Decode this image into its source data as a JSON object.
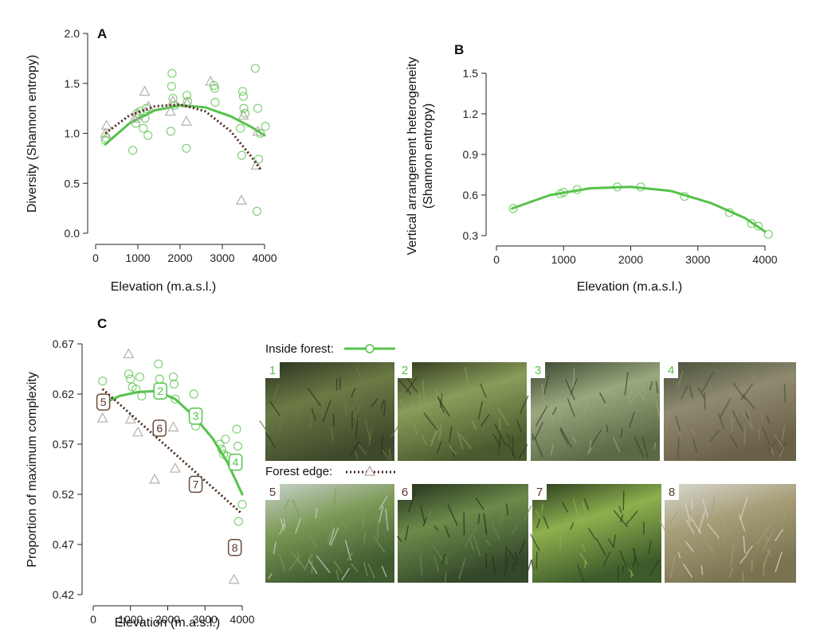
{
  "colors": {
    "inside": "#55c24a",
    "edge": "#4a2a1a",
    "triangle": "#b0a69f",
    "box_edge_text": "#5a3a2a",
    "axis": "#222222"
  },
  "chart_data": [
    {
      "panel_label": "A",
      "type": "scatter",
      "xlabel": "Elevation (m.a.s.l.)",
      "ylabel": "Diversity (Shannon entropy)",
      "xlim": [
        0,
        4000
      ],
      "ylim": [
        0,
        2.0
      ],
      "xticks": [
        "0",
        "1000",
        "2000",
        "3000",
        "4000"
      ],
      "yticks": [
        "0.0",
        "0.5",
        "1.0",
        "1.5",
        "2.0"
      ],
      "xtick_values": [
        0,
        1000,
        2000,
        3000,
        4000
      ],
      "ytick_values": [
        0,
        0.5,
        1.0,
        1.5,
        2.0
      ],
      "series": [
        {
          "group": "inside",
          "marker": "circle",
          "points": [
            [
              230,
              0.93
            ],
            [
              260,
              0.95
            ],
            [
              880,
              0.83
            ],
            [
              950,
              1.1
            ],
            [
              980,
              1.2
            ],
            [
              1050,
              1.22
            ],
            [
              1130,
              1.05
            ],
            [
              1170,
              1.15
            ],
            [
              1200,
              1.25
            ],
            [
              1240,
              0.98
            ],
            [
              1780,
              1.02
            ],
            [
              1800,
              1.47
            ],
            [
              1810,
              1.6
            ],
            [
              1830,
              1.35
            ],
            [
              1870,
              1.28
            ],
            [
              2150,
              0.85
            ],
            [
              2160,
              1.38
            ],
            [
              2180,
              1.32
            ],
            [
              2800,
              1.48
            ],
            [
              2820,
              1.45
            ],
            [
              2830,
              1.31
            ],
            [
              3430,
              1.05
            ],
            [
              3460,
              0.78
            ],
            [
              3480,
              1.42
            ],
            [
              3500,
              1.37
            ],
            [
              3510,
              1.25
            ],
            [
              3540,
              1.2
            ],
            [
              3780,
              1.65
            ],
            [
              3820,
              0.22
            ],
            [
              3840,
              1.25
            ],
            [
              3860,
              0.74
            ],
            [
              3900,
              1.0
            ],
            [
              4020,
              1.07
            ]
          ],
          "fit": [
            [
              230,
              0.89
            ],
            [
              800,
              1.1
            ],
            [
              1400,
              1.23
            ],
            [
              2000,
              1.28
            ],
            [
              2600,
              1.26
            ],
            [
              3200,
              1.17
            ],
            [
              3700,
              1.06
            ],
            [
              4000,
              0.98
            ]
          ]
        },
        {
          "group": "edge",
          "marker": "triangle",
          "points": [
            [
              230,
              1.0
            ],
            [
              260,
              1.08
            ],
            [
              920,
              1.15
            ],
            [
              1000,
              1.18
            ],
            [
              1160,
              1.42
            ],
            [
              1250,
              1.27
            ],
            [
              1770,
              1.22
            ],
            [
              1830,
              1.32
            ],
            [
              2150,
              1.12
            ],
            [
              2170,
              1.3
            ],
            [
              2720,
              1.52
            ],
            [
              3450,
              0.33
            ],
            [
              3500,
              1.18
            ],
            [
              3800,
              0.68
            ],
            [
              3840,
              1.02
            ]
          ],
          "fit": [
            [
              230,
              1.0
            ],
            [
              800,
              1.18
            ],
            [
              1400,
              1.27
            ],
            [
              2000,
              1.29
            ],
            [
              2600,
              1.22
            ],
            [
              3200,
              1.02
            ],
            [
              3700,
              0.76
            ],
            [
              3900,
              0.64
            ]
          ]
        }
      ]
    },
    {
      "panel_label": "B",
      "type": "scatter",
      "xlabel": "Elevation (m.a.s.l.)",
      "ylabel_line1": "Vertical arrangement heterogeneity",
      "ylabel_line2": "(Shannon entropy)",
      "xlim": [
        0,
        4000
      ],
      "ylim": [
        0.3,
        1.5
      ],
      "xticks": [
        "0",
        "1000",
        "2000",
        "3000",
        "4000"
      ],
      "yticks": [
        "0.3",
        "0.6",
        "0.9",
        "1.2",
        "1.5"
      ],
      "xtick_values": [
        0,
        1000,
        2000,
        3000,
        4000
      ],
      "ytick_values": [
        0.3,
        0.6,
        0.9,
        1.2,
        1.5
      ],
      "series": [
        {
          "group": "inside",
          "marker": "circle",
          "points": [
            [
              250,
              0.5
            ],
            [
              950,
              0.61
            ],
            [
              1000,
              0.62
            ],
            [
              1200,
              0.64
            ],
            [
              1800,
              0.66
            ],
            [
              2150,
              0.66
            ],
            [
              2800,
              0.59
            ],
            [
              3470,
              0.47
            ],
            [
              3800,
              0.39
            ],
            [
              3900,
              0.37
            ],
            [
              4050,
              0.31
            ]
          ],
          "fit": [
            [
              230,
              0.5
            ],
            [
              800,
              0.6
            ],
            [
              1400,
              0.65
            ],
            [
              2000,
              0.66
            ],
            [
              2600,
              0.63
            ],
            [
              3200,
              0.54
            ],
            [
              3700,
              0.43
            ],
            [
              4000,
              0.33
            ]
          ]
        }
      ]
    },
    {
      "panel_label": "C",
      "type": "scatter",
      "xlabel": "Elevation (m.a.s.l.)",
      "ylabel": "Proportion of maximum complexity",
      "xlim": [
        0,
        4000
      ],
      "ylim": [
        0.42,
        0.67
      ],
      "xticks": [
        "0",
        "1000",
        "2000",
        "3000",
        "4000"
      ],
      "yticks": [
        "0.42",
        "0.47",
        "0.52",
        "0.57",
        "0.62",
        "0.67"
      ],
      "xtick_values": [
        0,
        1000,
        2000,
        3000,
        4000
      ],
      "ytick_values": [
        0.42,
        0.47,
        0.52,
        0.57,
        0.62,
        0.67
      ],
      "series": [
        {
          "group": "inside",
          "marker": "circle",
          "points": [
            [
              250,
              0.633
            ],
            [
              300,
              0.613
            ],
            [
              950,
              0.64
            ],
            [
              1000,
              0.635
            ],
            [
              1050,
              0.627
            ],
            [
              1150,
              0.625
            ],
            [
              1250,
              0.637
            ],
            [
              1300,
              0.618
            ],
            [
              1750,
              0.65
            ],
            [
              1780,
              0.635
            ],
            [
              1800,
              0.625
            ],
            [
              2150,
              0.637
            ],
            [
              2170,
              0.63
            ],
            [
              2200,
              0.615
            ],
            [
              2700,
              0.62
            ],
            [
              2750,
              0.588
            ],
            [
              3400,
              0.57
            ],
            [
              3450,
              0.565
            ],
            [
              3500,
              0.56
            ],
            [
              3550,
              0.575
            ],
            [
              3600,
              0.558
            ],
            [
              3850,
              0.585
            ],
            [
              3880,
              0.568
            ],
            [
              3900,
              0.493
            ],
            [
              4000,
              0.51
            ]
          ],
          "fit": [
            [
              250,
              0.61
            ],
            [
              700,
              0.618
            ],
            [
              1200,
              0.622
            ],
            [
              1700,
              0.623
            ],
            [
              2200,
              0.615
            ],
            [
              2700,
              0.598
            ],
            [
              3200,
              0.576
            ],
            [
              3600,
              0.552
            ],
            [
              4000,
              0.52
            ]
          ]
        },
        {
          "group": "edge",
          "marker": "triangle",
          "points": [
            [
              250,
              0.596
            ],
            [
              950,
              0.66
            ],
            [
              1000,
              0.595
            ],
            [
              1200,
              0.582
            ],
            [
              1650,
              0.535
            ],
            [
              2150,
              0.587
            ],
            [
              2200,
              0.546
            ],
            [
              3780,
              0.435
            ]
          ],
          "fit": [
            [
              250,
              0.625
            ],
            [
              3950,
              0.502
            ]
          ]
        }
      ],
      "labels": [
        {
          "text": "5",
          "group": "edge",
          "x": 270,
          "y": 0.612
        },
        {
          "text": "2",
          "group": "inside",
          "x": 1800,
          "y": 0.623
        },
        {
          "text": "6",
          "group": "edge",
          "x": 1780,
          "y": 0.586
        },
        {
          "text": "3",
          "group": "inside",
          "x": 2750,
          "y": 0.598
        },
        {
          "text": "7",
          "group": "edge",
          "x": 2750,
          "y": 0.53
        },
        {
          "text": "4",
          "group": "inside",
          "x": 3820,
          "y": 0.552
        },
        {
          "text": "8",
          "group": "edge",
          "x": 3800,
          "y": 0.467
        }
      ]
    }
  ],
  "legend": {
    "inside_label": "Inside forest:",
    "edge_label": "Forest edge:"
  },
  "photos": [
    {
      "number": "1",
      "group": "inside",
      "palette": [
        "#3e4a2b",
        "#6c7a45",
        "#2a3320"
      ]
    },
    {
      "number": "2",
      "group": "inside",
      "palette": [
        "#4a5a2e",
        "#8a9c5a",
        "#2f3a1e"
      ]
    },
    {
      "number": "3",
      "group": "inside",
      "palette": [
        "#596a45",
        "#9aa87e",
        "#3a4630"
      ]
    },
    {
      "number": "4",
      "group": "inside",
      "palette": [
        "#6a6048",
        "#8f8a70",
        "#48503a"
      ]
    },
    {
      "number": "5",
      "group": "edge",
      "palette": [
        "#3f5a2e",
        "#7e9a58",
        "#c8d2cc"
      ]
    },
    {
      "number": "6",
      "group": "edge",
      "palette": [
        "#34472a",
        "#6d8a4a",
        "#22301c"
      ]
    },
    {
      "number": "7",
      "group": "edge",
      "palette": [
        "#3c5a2a",
        "#8fb04e",
        "#2a3c1e"
      ]
    },
    {
      "number": "8",
      "group": "edge",
      "palette": [
        "#7a7350",
        "#a79e78",
        "#d8d8d0"
      ]
    }
  ]
}
